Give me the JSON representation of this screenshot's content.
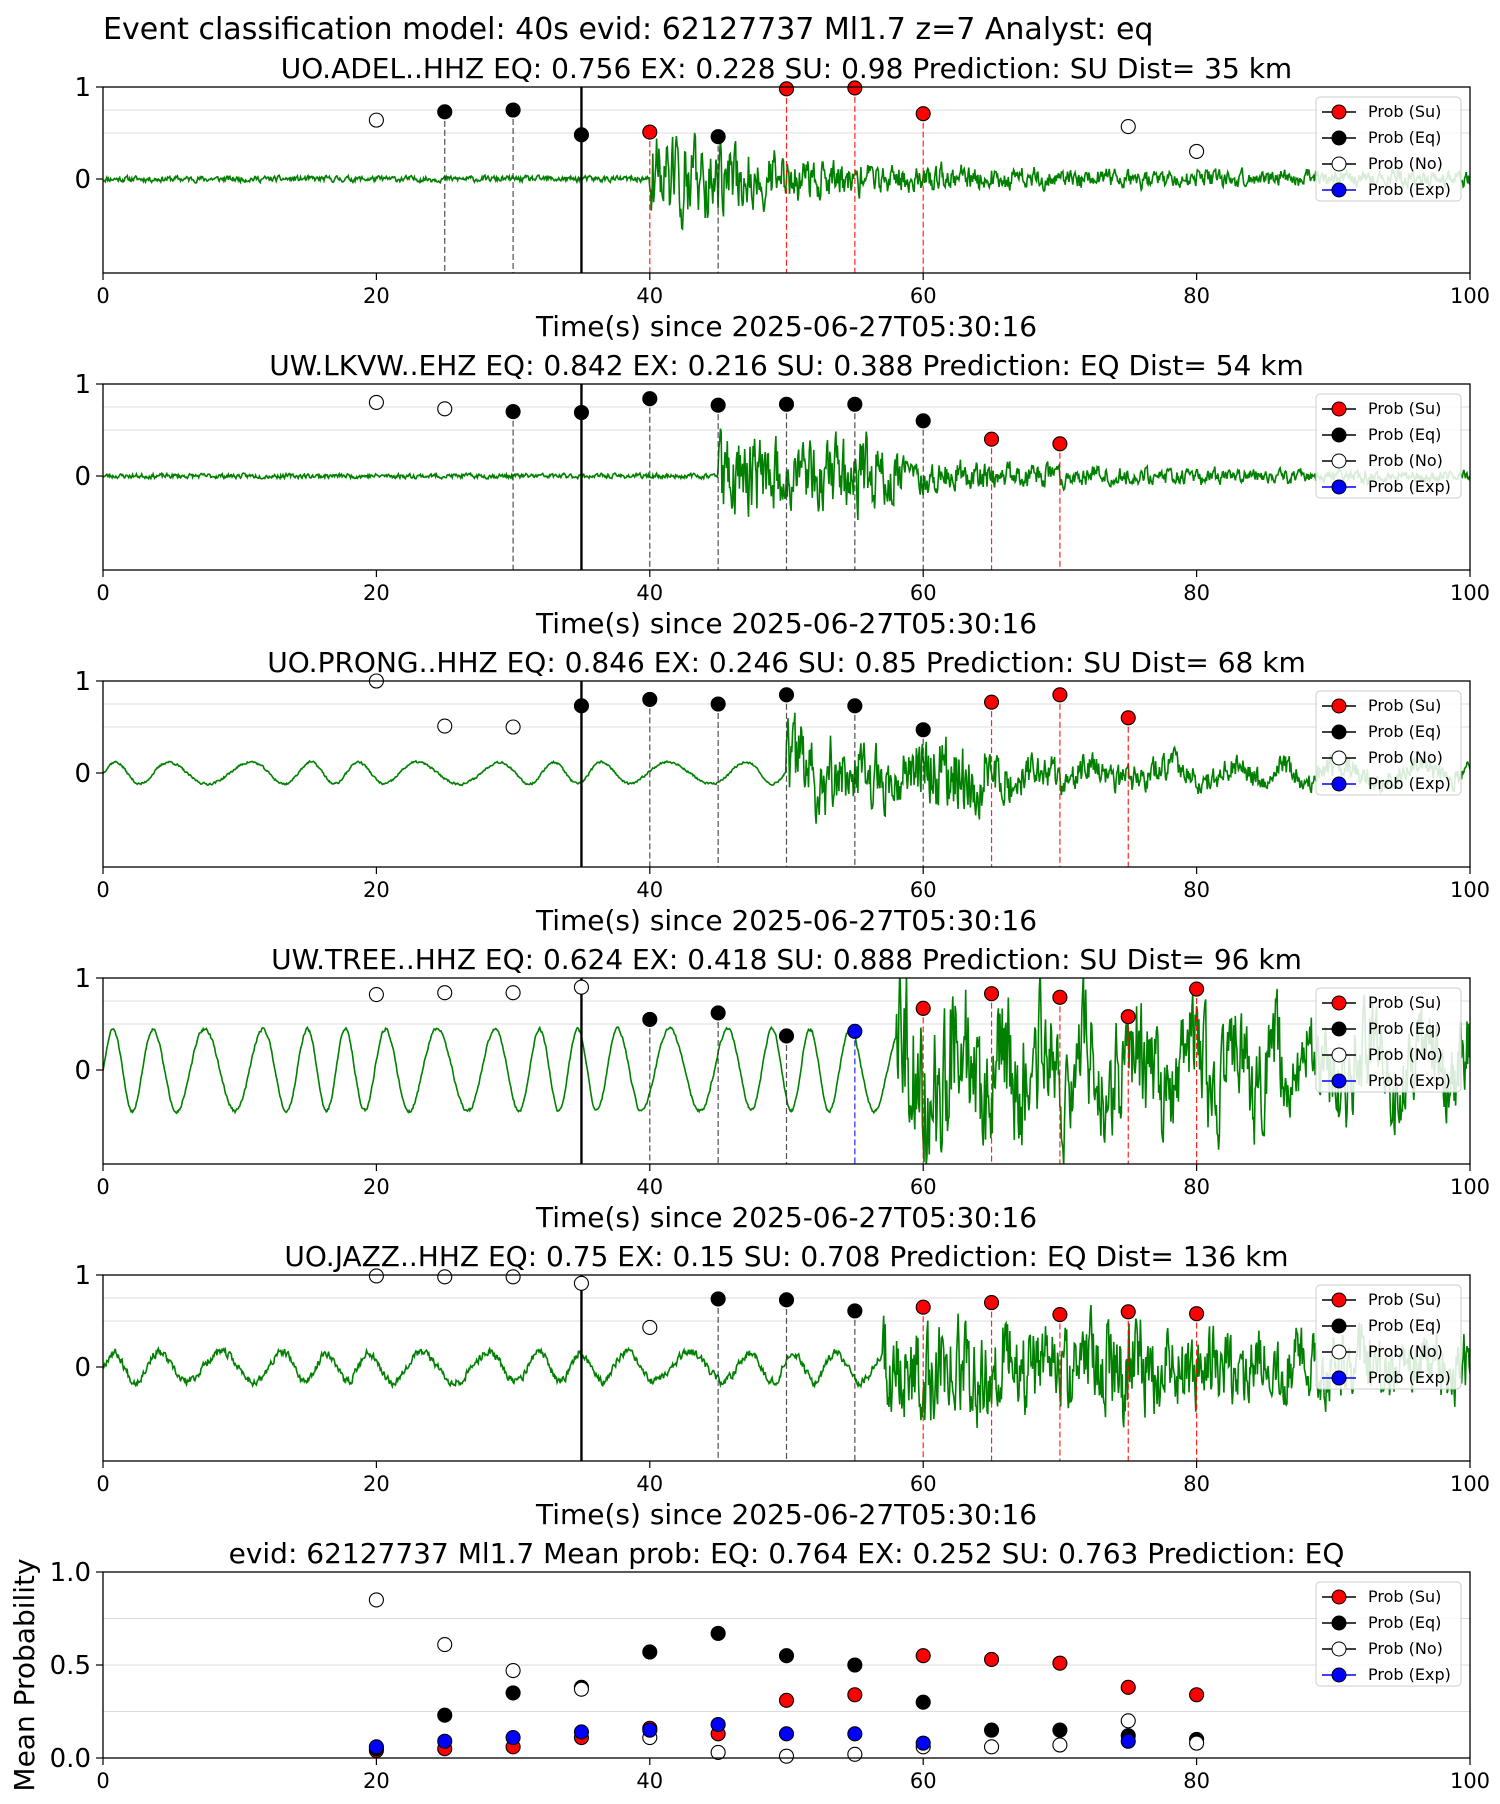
{
  "figure": {
    "suptitle": "Event classification model: 40s evid: 62127737 Ml1.7 z=7 Analyst: eq"
  },
  "legend": [
    "Prob (Su)",
    "Prob (Eq)",
    "Prob (No)",
    "Prob (Exp)"
  ],
  "colors": {
    "waveform": "#008000",
    "su": "#ff0000",
    "eq": "#000000",
    "no": "#ffffff",
    "exp": "#0000ff",
    "grid": "#d0d0d0"
  },
  "chart_data": [
    {
      "type": "line",
      "title": "UO.ADEL..HHZ   EQ: 0.756  EX: 0.228  SU: 0.98   Prediction: SU    Dist= 35 km",
      "xlabel": "Time(s) since 2025-06-27T05:30:16",
      "xlim": [
        0,
        100
      ],
      "xticks": [
        "0",
        "20",
        "40",
        "60",
        "80",
        "100"
      ],
      "yticks": [
        "1",
        "0"
      ],
      "series": {
        "waveform": {
          "noise": 0.05,
          "arrival": 40,
          "peak": 0.8,
          "decay": 9,
          "tail": 0.12,
          "seed": 11
        }
      },
      "reference_line": 35,
      "windows": [
        {
          "t": 20,
          "class": "no",
          "prob": 0.64
        },
        {
          "t": 25,
          "class": "eq",
          "prob": 0.73
        },
        {
          "t": 30,
          "class": "eq",
          "prob": 0.75
        },
        {
          "t": 35,
          "class": "eq",
          "prob": 0.48
        },
        {
          "t": 40,
          "class": "su",
          "prob": 0.51
        },
        {
          "t": 45,
          "class": "eq",
          "prob": 0.46
        },
        {
          "t": 50,
          "class": "su",
          "prob": 0.98
        },
        {
          "t": 55,
          "class": "su",
          "prob": 0.99
        },
        {
          "t": 60,
          "class": "su",
          "prob": 0.71
        },
        {
          "t": 75,
          "class": "no",
          "prob": 0.57
        },
        {
          "t": 80,
          "class": "no",
          "prob": 0.3
        }
      ]
    },
    {
      "type": "line",
      "title": "UW.LKVW..EHZ   EQ: 0.842  EX: 0.216  SU: 0.388   Prediction: EQ    Dist= 54 km",
      "xlabel": "Time(s) since 2025-06-27T05:30:16",
      "xlim": [
        0,
        100
      ],
      "xticks": [
        "0",
        "20",
        "40",
        "60",
        "80",
        "100"
      ],
      "yticks": [
        "1",
        "0"
      ],
      "series": {
        "waveform": {
          "noise": 0.04,
          "arrival": 45,
          "peak": 0.7,
          "decay": 12,
          "tail": 0.08,
          "seed": 23,
          "burst": 55
        }
      },
      "reference_line": 35,
      "windows": [
        {
          "t": 20,
          "class": "no",
          "prob": 0.8
        },
        {
          "t": 25,
          "class": "no",
          "prob": 0.73
        },
        {
          "t": 30,
          "class": "eq",
          "prob": 0.7
        },
        {
          "t": 35,
          "class": "eq",
          "prob": 0.69
        },
        {
          "t": 40,
          "class": "eq",
          "prob": 0.84
        },
        {
          "t": 45,
          "class": "eq",
          "prob": 0.77
        },
        {
          "t": 50,
          "class": "eq",
          "prob": 0.78
        },
        {
          "t": 55,
          "class": "eq",
          "prob": 0.78
        },
        {
          "t": 60,
          "class": "eq",
          "prob": 0.6
        },
        {
          "t": 65,
          "class": "su",
          "prob": 0.4
        },
        {
          "t": 70,
          "class": "su",
          "prob": 0.35
        }
      ]
    },
    {
      "type": "line",
      "title": "UO.PRONG..HHZ   EQ: 0.846  EX: 0.246  SU: 0.85   Prediction: SU    Dist= 68 km",
      "xlabel": "Time(s) since 2025-06-27T05:30:16",
      "xlim": [
        0,
        100
      ],
      "xticks": [
        "0",
        "20",
        "40",
        "60",
        "80",
        "100"
      ],
      "yticks": [
        "1",
        "0"
      ],
      "series": {
        "waveform": {
          "noise": 0.02,
          "swell": 0.12,
          "swellPeriod": 4.5,
          "arrival": 50,
          "peak": 0.6,
          "decay": 14,
          "tail": 0.15,
          "seed": 37,
          "burst": 63
        }
      },
      "reference_line": 35,
      "windows": [
        {
          "t": 20,
          "class": "no",
          "prob": 1.0
        },
        {
          "t": 25,
          "class": "no",
          "prob": 0.51
        },
        {
          "t": 30,
          "class": "no",
          "prob": 0.5
        },
        {
          "t": 35,
          "class": "eq",
          "prob": 0.73
        },
        {
          "t": 40,
          "class": "eq",
          "prob": 0.8
        },
        {
          "t": 45,
          "class": "eq",
          "prob": 0.75
        },
        {
          "t": 50,
          "class": "eq",
          "prob": 0.85
        },
        {
          "t": 55,
          "class": "eq",
          "prob": 0.73
        },
        {
          "t": 60,
          "class": "eq",
          "prob": 0.47
        },
        {
          "t": 65,
          "class": "su",
          "prob": 0.77
        },
        {
          "t": 70,
          "class": "su",
          "prob": 0.85
        },
        {
          "t": 75,
          "class": "su",
          "prob": 0.6
        }
      ]
    },
    {
      "type": "line",
      "title": "UW.TREE..HHZ   EQ: 0.624  EX: 0.418  SU: 0.888   Prediction: SU    Dist= 96 km",
      "xlabel": "Time(s) since 2025-06-27T05:30:16",
      "xlim": [
        0,
        100
      ],
      "xticks": [
        "0",
        "20",
        "40",
        "60",
        "80",
        "100"
      ],
      "yticks": [
        "1",
        "0"
      ],
      "series": {
        "waveform": {
          "noise": 0.03,
          "swell": 0.45,
          "swellPeriod": 3.4,
          "arrival": 58,
          "peak": 0.75,
          "decay": 30,
          "tail": 0.5,
          "seed": 51
        }
      },
      "reference_line": 35,
      "windows": [
        {
          "t": 20,
          "class": "no",
          "prob": 0.82
        },
        {
          "t": 25,
          "class": "no",
          "prob": 0.84
        },
        {
          "t": 30,
          "class": "no",
          "prob": 0.84
        },
        {
          "t": 35,
          "class": "no",
          "prob": 0.9
        },
        {
          "t": 40,
          "class": "eq",
          "prob": 0.55
        },
        {
          "t": 45,
          "class": "eq",
          "prob": 0.62
        },
        {
          "t": 50,
          "class": "eq",
          "prob": 0.37
        },
        {
          "t": 55,
          "class": "exp",
          "prob": 0.42
        },
        {
          "t": 60,
          "class": "su",
          "prob": 0.67
        },
        {
          "t": 65,
          "class": "su",
          "prob": 0.83
        },
        {
          "t": 70,
          "class": "su",
          "prob": 0.79
        },
        {
          "t": 75,
          "class": "su",
          "prob": 0.58
        },
        {
          "t": 80,
          "class": "su",
          "prob": 0.88
        }
      ]
    },
    {
      "type": "line",
      "title": "UO.JAZZ..HHZ   EQ: 0.75  EX: 0.15  SU: 0.708   Prediction: EQ    Dist= 136 km",
      "xlabel": "Time(s) since 2025-06-27T05:30:16",
      "xlim": [
        0,
        100
      ],
      "xticks": [
        "0",
        "20",
        "40",
        "60",
        "80",
        "100"
      ],
      "yticks": [
        "1",
        "0"
      ],
      "series": {
        "waveform": {
          "noise": 0.07,
          "swell": 0.16,
          "swellPeriod": 3.8,
          "arrival": 57,
          "peak": 0.5,
          "decay": 30,
          "tail": 0.35,
          "seed": 67,
          "burst": 76
        }
      },
      "reference_line": 35,
      "windows": [
        {
          "t": 20,
          "class": "no",
          "prob": 0.99
        },
        {
          "t": 25,
          "class": "no",
          "prob": 0.98
        },
        {
          "t": 30,
          "class": "no",
          "prob": 0.98
        },
        {
          "t": 35,
          "class": "no",
          "prob": 0.91
        },
        {
          "t": 40,
          "class": "no",
          "prob": 0.43
        },
        {
          "t": 45,
          "class": "eq",
          "prob": 0.74
        },
        {
          "t": 50,
          "class": "eq",
          "prob": 0.73
        },
        {
          "t": 55,
          "class": "eq",
          "prob": 0.61
        },
        {
          "t": 60,
          "class": "su",
          "prob": 0.65
        },
        {
          "t": 65,
          "class": "su",
          "prob": 0.7
        },
        {
          "t": 70,
          "class": "su",
          "prob": 0.57
        },
        {
          "t": 75,
          "class": "su",
          "prob": 0.6
        },
        {
          "t": 80,
          "class": "su",
          "prob": 0.58
        }
      ]
    },
    {
      "type": "scatter",
      "title": "evid: 62127737  Ml1.7   Mean prob:   EQ: 0.764  EX: 0.252  SU: 0.763   Prediction: EQ",
      "ylabel": "Mean Probability",
      "xlim": [
        0,
        100
      ],
      "xticks": [
        "0",
        "20",
        "40",
        "60",
        "80",
        "100"
      ],
      "ylim": [
        0,
        1
      ],
      "yticks": [
        "1.0",
        "0.5",
        "0.0"
      ],
      "x": [
        20,
        25,
        30,
        35,
        40,
        45,
        50,
        55,
        60,
        65,
        70,
        75,
        80
      ],
      "series": [
        {
          "name": "Prob (Su)",
          "class": "su",
          "values": [
            0.04,
            0.05,
            0.06,
            0.11,
            0.16,
            0.13,
            0.31,
            0.34,
            0.55,
            0.53,
            0.51,
            0.38,
            0.34
          ]
        },
        {
          "name": "Prob (Eq)",
          "class": "eq",
          "values": [
            0.05,
            0.23,
            0.35,
            0.38,
            0.57,
            0.67,
            0.55,
            0.5,
            0.3,
            0.15,
            0.15,
            0.12,
            0.1
          ]
        },
        {
          "name": "Prob (No)",
          "class": "no",
          "values": [
            0.85,
            0.61,
            0.47,
            0.37,
            0.11,
            0.03,
            0.01,
            0.02,
            0.06,
            0.06,
            0.07,
            0.2,
            0.08
          ]
        },
        {
          "name": "Prob (Exp)",
          "class": "exp",
          "values": [
            0.06,
            0.09,
            0.11,
            0.14,
            0.15,
            0.18,
            0.13,
            0.13,
            0.08,
            null,
            null,
            0.09,
            null
          ]
        }
      ]
    }
  ]
}
